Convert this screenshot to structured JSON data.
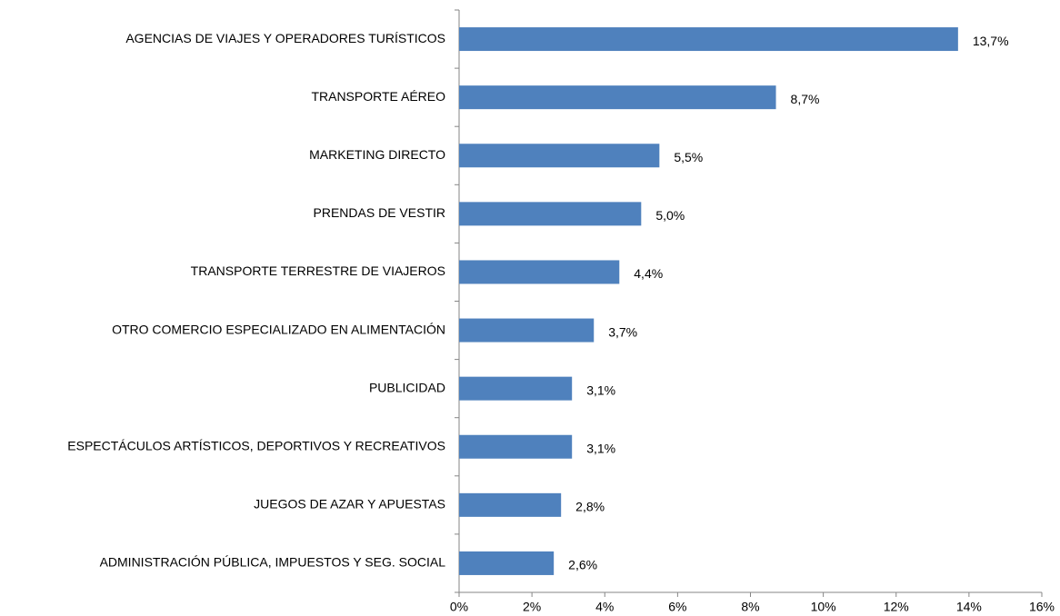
{
  "chart_data": {
    "type": "bar",
    "orientation": "horizontal",
    "categories": [
      "AGENCIAS DE VIAJES Y OPERADORES TURÍSTICOS",
      "TRANSPORTE AÉREO",
      "MARKETING DIRECTO",
      "PRENDAS DE VESTIR",
      "TRANSPORTE TERRESTRE DE VIAJEROS",
      "OTRO COMERCIO ESPECIALIZADO EN ALIMENTACIÓN",
      "PUBLICIDAD",
      "ESPECTÁCULOS ARTÍSTICOS, DEPORTIVOS Y RECREATIVOS",
      "JUEGOS DE AZAR Y APUESTAS",
      "ADMINISTRACIÓN PÚBLICA, IMPUESTOS Y SEG. SOCIAL"
    ],
    "values": [
      13.7,
      8.7,
      5.5,
      5.0,
      4.4,
      3.7,
      3.1,
      3.1,
      2.8,
      2.6
    ],
    "value_labels": [
      "13,7%",
      "8,7%",
      "5,5%",
      "5,0%",
      "4,4%",
      "3,7%",
      "3,1%",
      "3,1%",
      "2,8%",
      "2,6%"
    ],
    "color": "#4f81bd",
    "xlim": [
      0,
      16
    ],
    "xticks": [
      {
        "value": 0,
        "label": "0%"
      },
      {
        "value": 2,
        "label": "2%"
      },
      {
        "value": 4,
        "label": "4%"
      },
      {
        "value": 6,
        "label": "6%"
      },
      {
        "value": 8,
        "label": "8%"
      },
      {
        "value": 10,
        "label": "10%"
      },
      {
        "value": 12,
        "label": "12%"
      },
      {
        "value": 14,
        "label": "14%"
      },
      {
        "value": 16,
        "label": "16%"
      }
    ],
    "grid": false
  }
}
